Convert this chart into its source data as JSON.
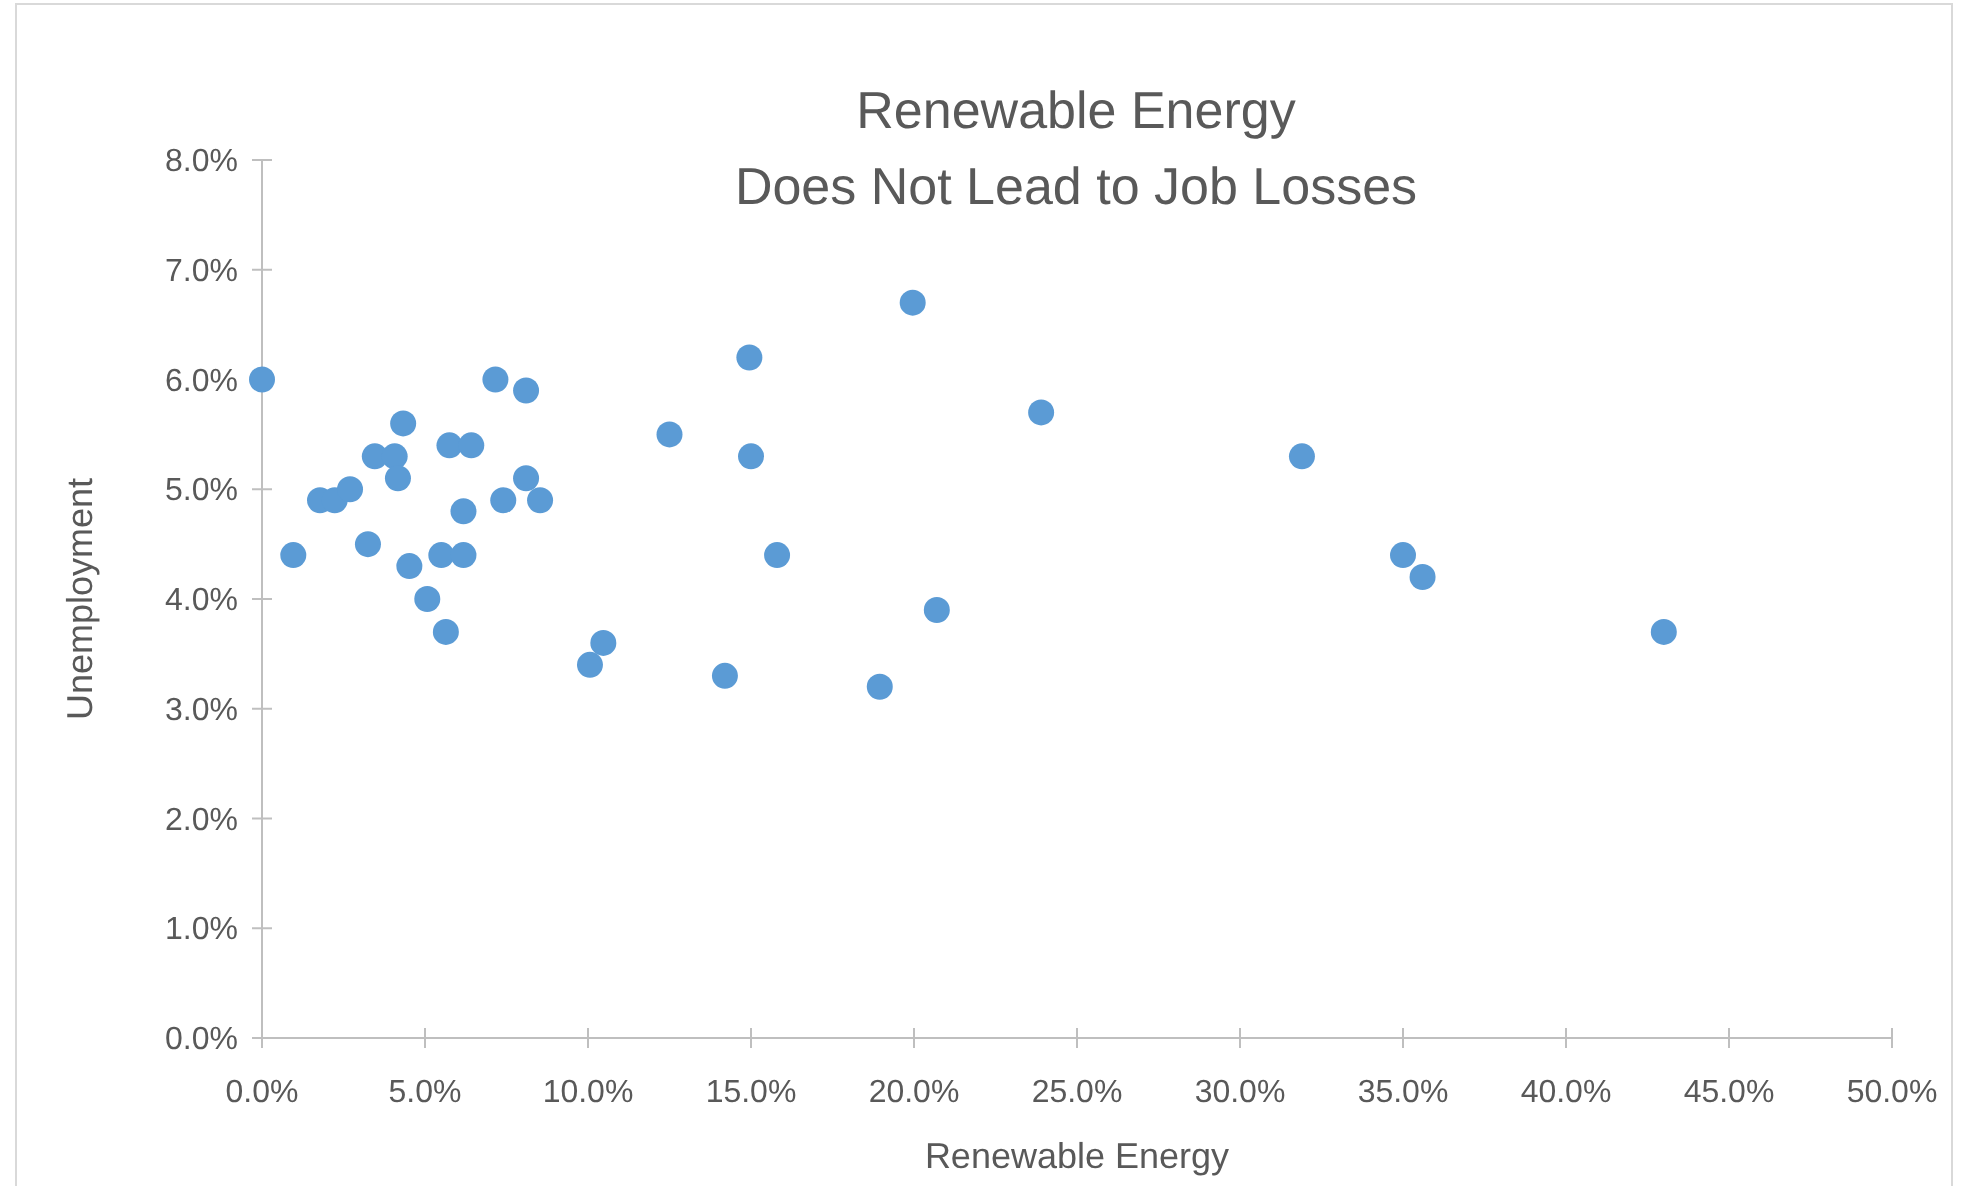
{
  "chart_data": {
    "type": "scatter",
    "title": "Renewable Energy\nDoes Not Lead to Job Losses",
    "xlabel": "Renewable Energy",
    "ylabel": "Unemployment",
    "marker": "circle",
    "grid": false,
    "xlim": [
      0,
      0.5
    ],
    "ylim": [
      0,
      0.08
    ],
    "xticks": [
      {
        "value": 0,
        "label": "0.0%"
      },
      {
        "value": 0.05,
        "label": "5.0%"
      },
      {
        "value": 0.1,
        "label": "10.0%"
      },
      {
        "value": 0.15,
        "label": "15.0%"
      },
      {
        "value": 0.2,
        "label": "20.0%"
      },
      {
        "value": 0.25,
        "label": "25.0%"
      },
      {
        "value": 0.3,
        "label": "30.0%"
      },
      {
        "value": 0.35,
        "label": "35.0%"
      },
      {
        "value": 0.4,
        "label": "40.0%"
      },
      {
        "value": 0.45,
        "label": "45.0%"
      },
      {
        "value": 0.5,
        "label": "50.0%"
      }
    ],
    "yticks": [
      {
        "value": 0,
        "label": "0.0%"
      },
      {
        "value": 0.01,
        "label": "1.0%"
      },
      {
        "value": 0.02,
        "label": "2.0%"
      },
      {
        "value": 0.03,
        "label": "3.0%"
      },
      {
        "value": 0.04,
        "label": "4.0%"
      },
      {
        "value": 0.05,
        "label": "5.0%"
      },
      {
        "value": 0.06,
        "label": "6.0%"
      },
      {
        "value": 0.07,
        "label": "7.0%"
      },
      {
        "value": 0.08,
        "label": "8.0%"
      }
    ],
    "series": [
      {
        "color": "#5b9bd5",
        "x": [
          0.0,
          0.0096,
          0.0178,
          0.0223,
          0.027,
          0.0325,
          0.0346,
          0.0407,
          0.0417,
          0.0433,
          0.0452,
          0.0507,
          0.055,
          0.0564,
          0.0575,
          0.0618,
          0.0618,
          0.0642,
          0.0716,
          0.074,
          0.081,
          0.081,
          0.0853,
          0.1006,
          0.1047,
          0.125,
          0.142,
          0.1495,
          0.15,
          0.158,
          0.1895,
          0.1996,
          0.207,
          0.239,
          0.319,
          0.35,
          0.356,
          0.43
        ],
        "values": [
          0.06,
          0.044,
          0.049,
          0.049,
          0.05,
          0.045,
          0.053,
          0.053,
          0.051,
          0.056,
          0.043,
          0.04,
          0.044,
          0.037,
          0.054,
          0.048,
          0.044,
          0.054,
          0.06,
          0.049,
          0.059,
          0.051,
          0.049,
          0.034,
          0.036,
          0.055,
          0.033,
          0.062,
          0.053,
          0.044,
          0.032,
          0.067,
          0.039,
          0.057,
          0.053,
          0.044,
          0.042,
          0.037
        ]
      }
    ]
  }
}
